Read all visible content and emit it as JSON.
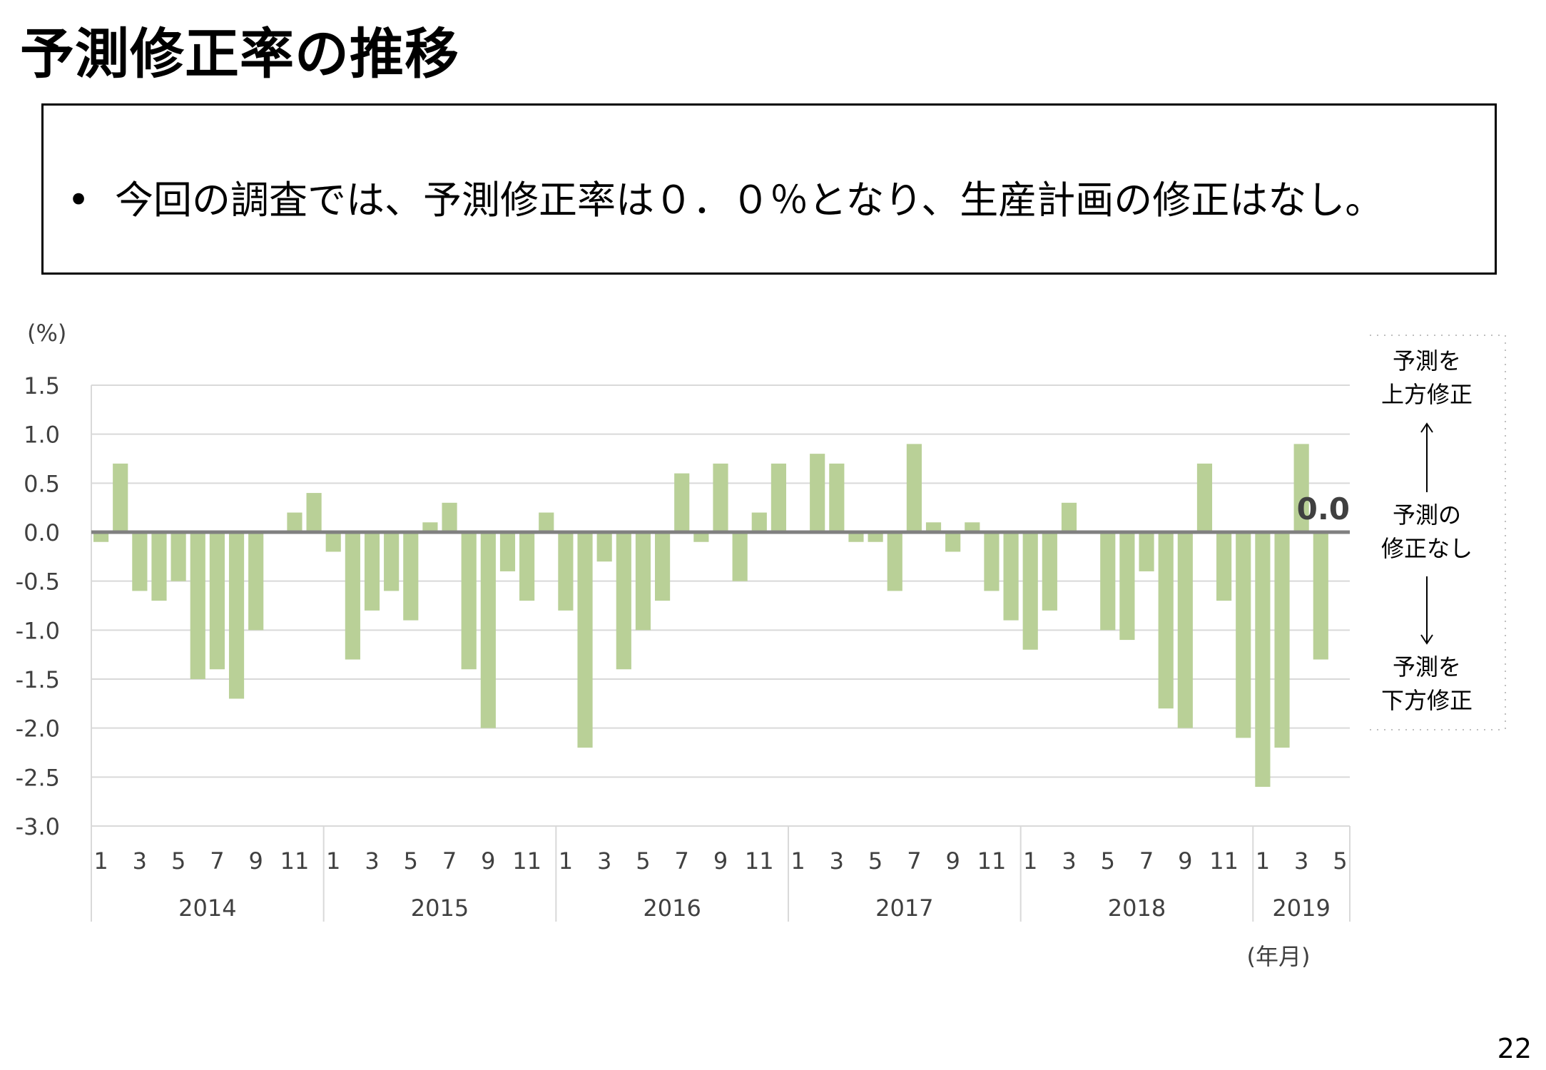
{
  "header": {
    "title": "予測修正率の推移"
  },
  "summary": {
    "bullet": "•",
    "text": "今回の調査では、予測修正率は０．０％となり、生産計画の修正はなし。"
  },
  "page_number": "22",
  "colors": {
    "bar": "#b9d097",
    "zero_line": "#808080",
    "grid": "#d9d9d9",
    "text": "#404040"
  },
  "side_panel": {
    "upward_line1": "予測を",
    "upward_line2": "上方修正",
    "none_line1": "予測の",
    "none_line2": "修正なし",
    "downward_line1": "予測を",
    "downward_line2": "下方修正"
  },
  "chart_data": {
    "type": "bar",
    "unit_label": "(%)",
    "xlabel": "(年月)",
    "ylim": [
      -3.0,
      1.5
    ],
    "yticks": [
      "1.5",
      "1.0",
      "0.5",
      "0.0",
      "-0.5",
      "-1.0",
      "-1.5",
      "-2.0",
      "-2.5",
      "-3.0"
    ],
    "grid": true,
    "annotation": "0.0",
    "years": [
      {
        "label": "2014",
        "months": 12
      },
      {
        "label": "2015",
        "months": 12
      },
      {
        "label": "2016",
        "months": 12
      },
      {
        "label": "2017",
        "months": 12
      },
      {
        "label": "2018",
        "months": 12
      },
      {
        "label": "2019",
        "months": 5
      }
    ],
    "categories": [
      "2014-01",
      "2014-02",
      "2014-03",
      "2014-04",
      "2014-05",
      "2014-06",
      "2014-07",
      "2014-08",
      "2014-09",
      "2014-10",
      "2014-11",
      "2014-12",
      "2015-01",
      "2015-02",
      "2015-03",
      "2015-04",
      "2015-05",
      "2015-06",
      "2015-07",
      "2015-08",
      "2015-09",
      "2015-10",
      "2015-11",
      "2015-12",
      "2016-01",
      "2016-02",
      "2016-03",
      "2016-04",
      "2016-05",
      "2016-06",
      "2016-07",
      "2016-08",
      "2016-09",
      "2016-10",
      "2016-11",
      "2016-12",
      "2017-01",
      "2017-02",
      "2017-03",
      "2017-04",
      "2017-05",
      "2017-06",
      "2017-07",
      "2017-08",
      "2017-09",
      "2017-10",
      "2017-11",
      "2017-12",
      "2018-01",
      "2018-02",
      "2018-03",
      "2018-04",
      "2018-05",
      "2018-06",
      "2018-07",
      "2018-08",
      "2018-09",
      "2018-10",
      "2018-11",
      "2018-12",
      "2019-01",
      "2019-02",
      "2019-03",
      "2019-04",
      "2019-05"
    ],
    "month_tick_labels": [
      "1",
      "",
      "3",
      "",
      "5",
      "",
      "7",
      "",
      "9",
      "",
      "11",
      "",
      "1",
      "",
      "3",
      "",
      "5",
      "",
      "7",
      "",
      "9",
      "",
      "11",
      "",
      "1",
      "",
      "3",
      "",
      "5",
      "",
      "7",
      "",
      "9",
      "",
      "11",
      "",
      "1",
      "",
      "3",
      "",
      "5",
      "",
      "7",
      "",
      "9",
      "",
      "11",
      "",
      "1",
      "",
      "3",
      "",
      "5",
      "",
      "7",
      "",
      "9",
      "",
      "11",
      "",
      "1",
      "",
      "3",
      "",
      "5"
    ],
    "values": [
      -0.1,
      0.7,
      -0.6,
      -0.7,
      -0.5,
      -1.5,
      -1.4,
      -1.7,
      -1.0,
      0.0,
      0.2,
      0.4,
      -0.2,
      -1.3,
      -0.8,
      -0.6,
      -0.9,
      0.1,
      0.3,
      -1.4,
      -2.0,
      -0.4,
      -0.7,
      0.2,
      -0.8,
      -2.2,
      -0.3,
      -1.4,
      -1.0,
      -0.7,
      0.6,
      -0.1,
      0.7,
      -0.5,
      0.2,
      0.7,
      0.0,
      0.8,
      0.7,
      -0.1,
      -0.1,
      -0.6,
      0.9,
      0.1,
      -0.2,
      0.1,
      -0.6,
      -0.9,
      -1.2,
      -0.8,
      0.3,
      0.0,
      -1.0,
      -1.1,
      -0.4,
      -1.8,
      -2.0,
      0.7,
      -0.7,
      -2.1,
      -2.6,
      -2.2,
      0.9,
      -1.3,
      0.0
    ]
  }
}
